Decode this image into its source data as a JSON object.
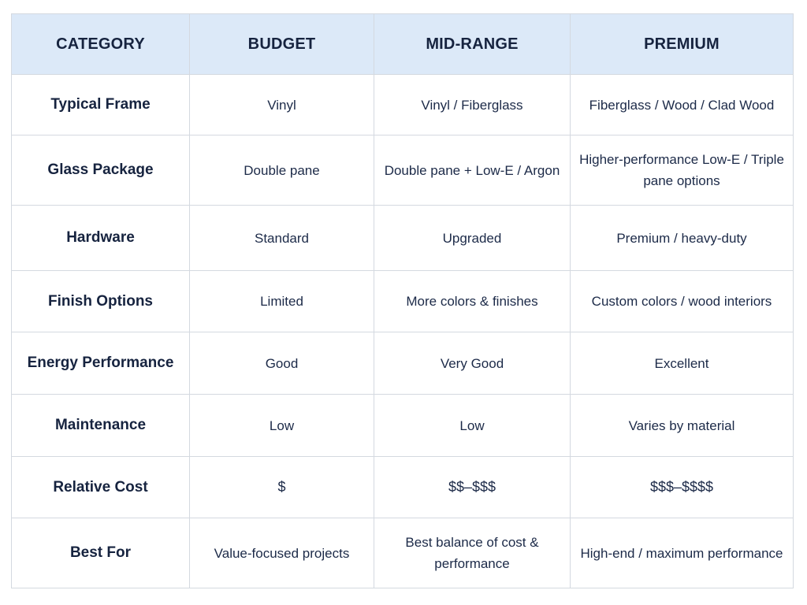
{
  "table": {
    "headers": [
      "CATEGORY",
      "BUDGET",
      "MID-RANGE",
      "PREMIUM"
    ],
    "rows": [
      {
        "category": "Typical Frame",
        "budget": "Vinyl",
        "mid": "Vinyl / Fiberglass",
        "premium": "Fiberglass / Wood / Clad Wood"
      },
      {
        "category": "Glass Package",
        "budget": "Double pane",
        "mid": "Double pane + Low-E / Argon",
        "premium": "Higher-performance Low-E / Triple pane options"
      },
      {
        "category": "Hardware",
        "budget": "Standard",
        "mid": "Upgraded",
        "premium": "Premium / heavy-duty"
      },
      {
        "category": "Finish Options",
        "budget": "Limited",
        "mid": "More colors & finishes",
        "premium": "Custom colors / wood interiors"
      },
      {
        "category": "Energy Performance",
        "budget": "Good",
        "mid": "Very Good",
        "premium": "Excellent"
      },
      {
        "category": "Maintenance",
        "budget": "Low",
        "mid": "Low",
        "premium": "Varies by material"
      },
      {
        "category": "Relative Cost",
        "budget": "$",
        "mid": "$$–$$$",
        "premium": "$$$–$$$$"
      },
      {
        "category": "Best For",
        "budget": "Value-focused projects",
        "mid": "Best balance of cost & performance",
        "premium": "High-end / maximum performance"
      }
    ]
  },
  "colors": {
    "header_bg": "#dce9f8",
    "border": "#d4d9e0",
    "text": "#16233f"
  }
}
